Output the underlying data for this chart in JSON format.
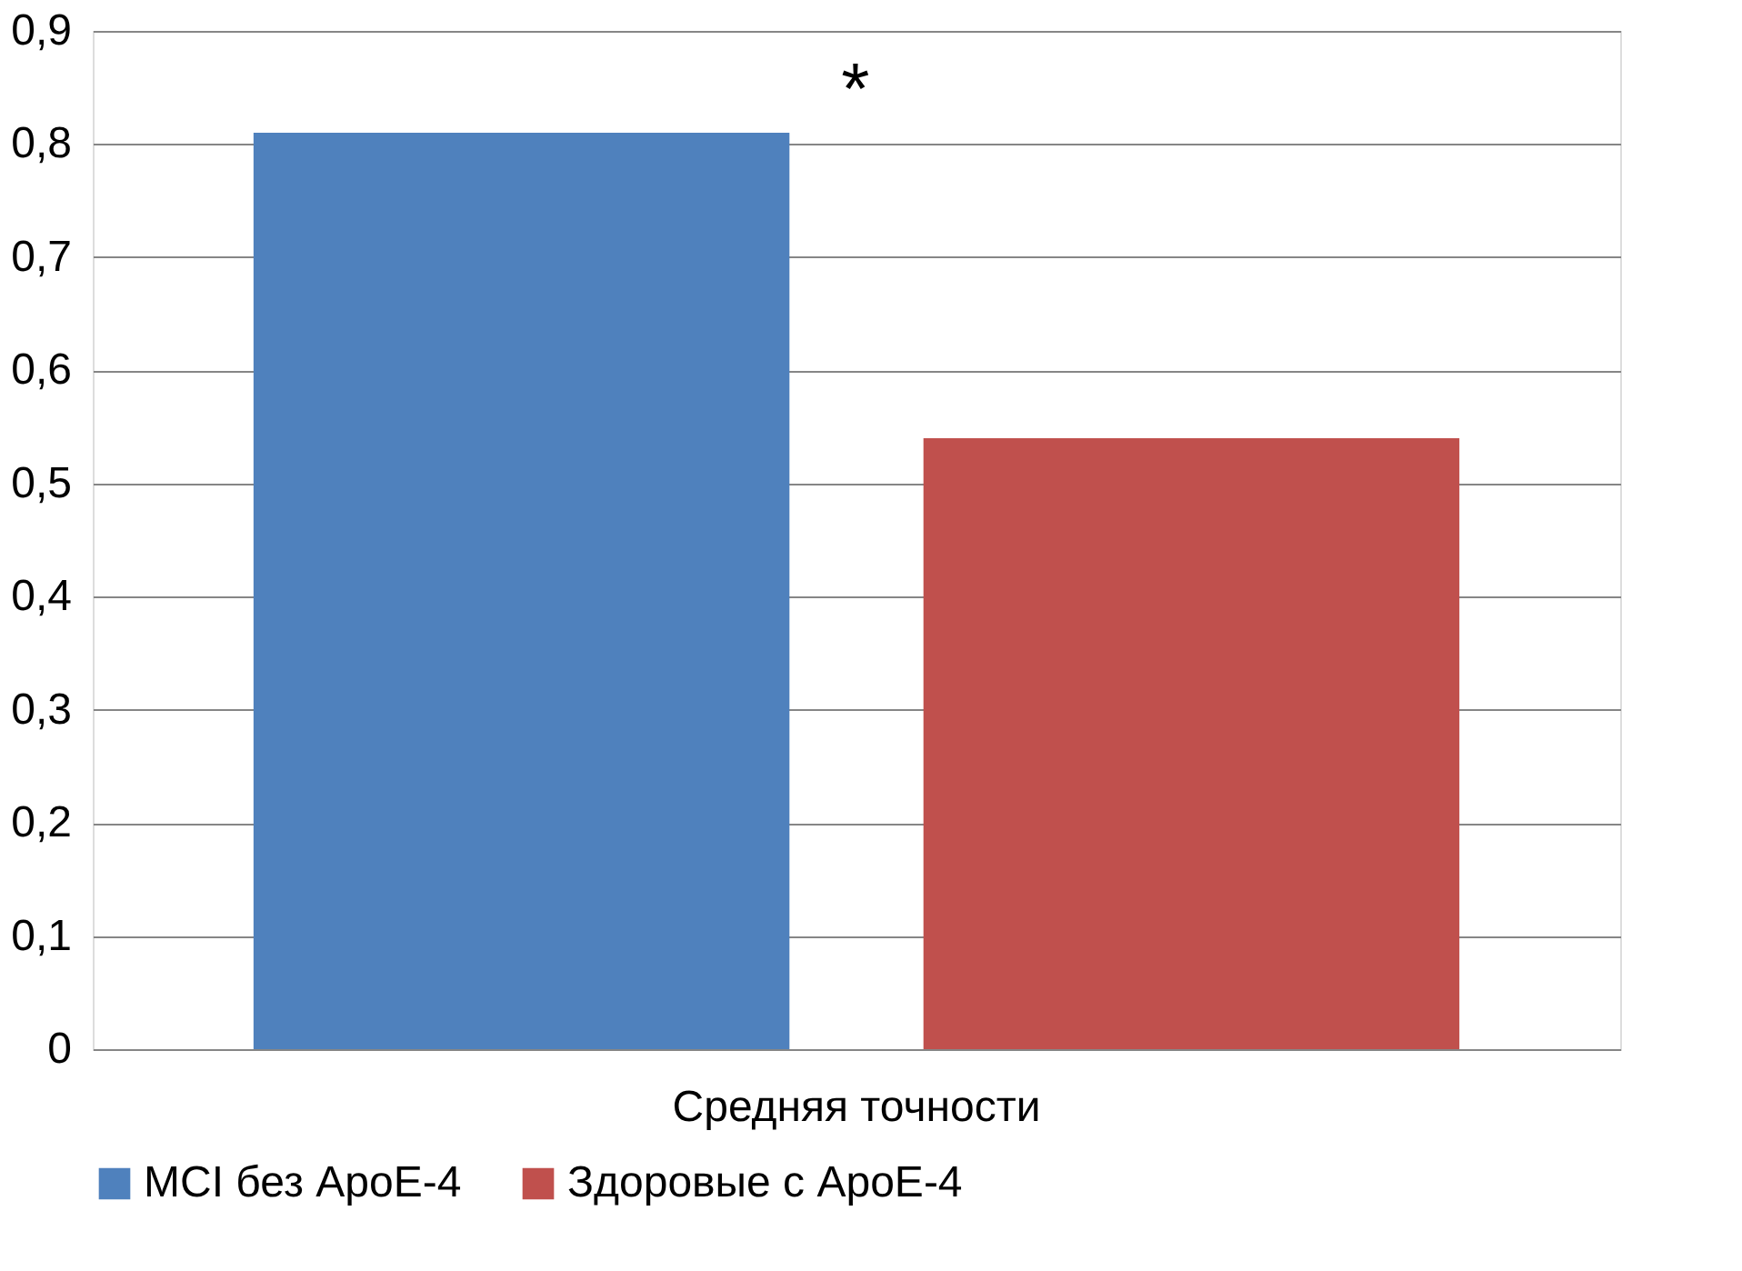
{
  "chart_data": {
    "type": "bar",
    "categories": [
      "Средняя точности"
    ],
    "series": [
      {
        "name": "MCI без ApoE-4",
        "color": "#4f81bd",
        "values": [
          0.81
        ]
      },
      {
        "name": "Здоровые с ApoE-4",
        "color": "#c0504d",
        "values": [
          0.54
        ]
      }
    ],
    "ylim": [
      0,
      0.9
    ],
    "yticks": [
      0,
      {
        "value": 0.1,
        "label": "0,1"
      },
      {
        "value": 0.2,
        "label": "0,2"
      },
      {
        "value": 0.3,
        "label": "0,3"
      },
      {
        "value": 0.4,
        "label": "0,4"
      },
      {
        "value": 0.5,
        "label": "0,5"
      },
      {
        "value": 0.6,
        "label": "0,6"
      },
      {
        "value": 0.7,
        "label": "0,7"
      },
      {
        "value": 0.8,
        "label": "0,8"
      },
      {
        "value": 0.9,
        "label": "0,9"
      }
    ],
    "grid": "y",
    "legend": "bottom",
    "annotations": [
      "*"
    ]
  }
}
